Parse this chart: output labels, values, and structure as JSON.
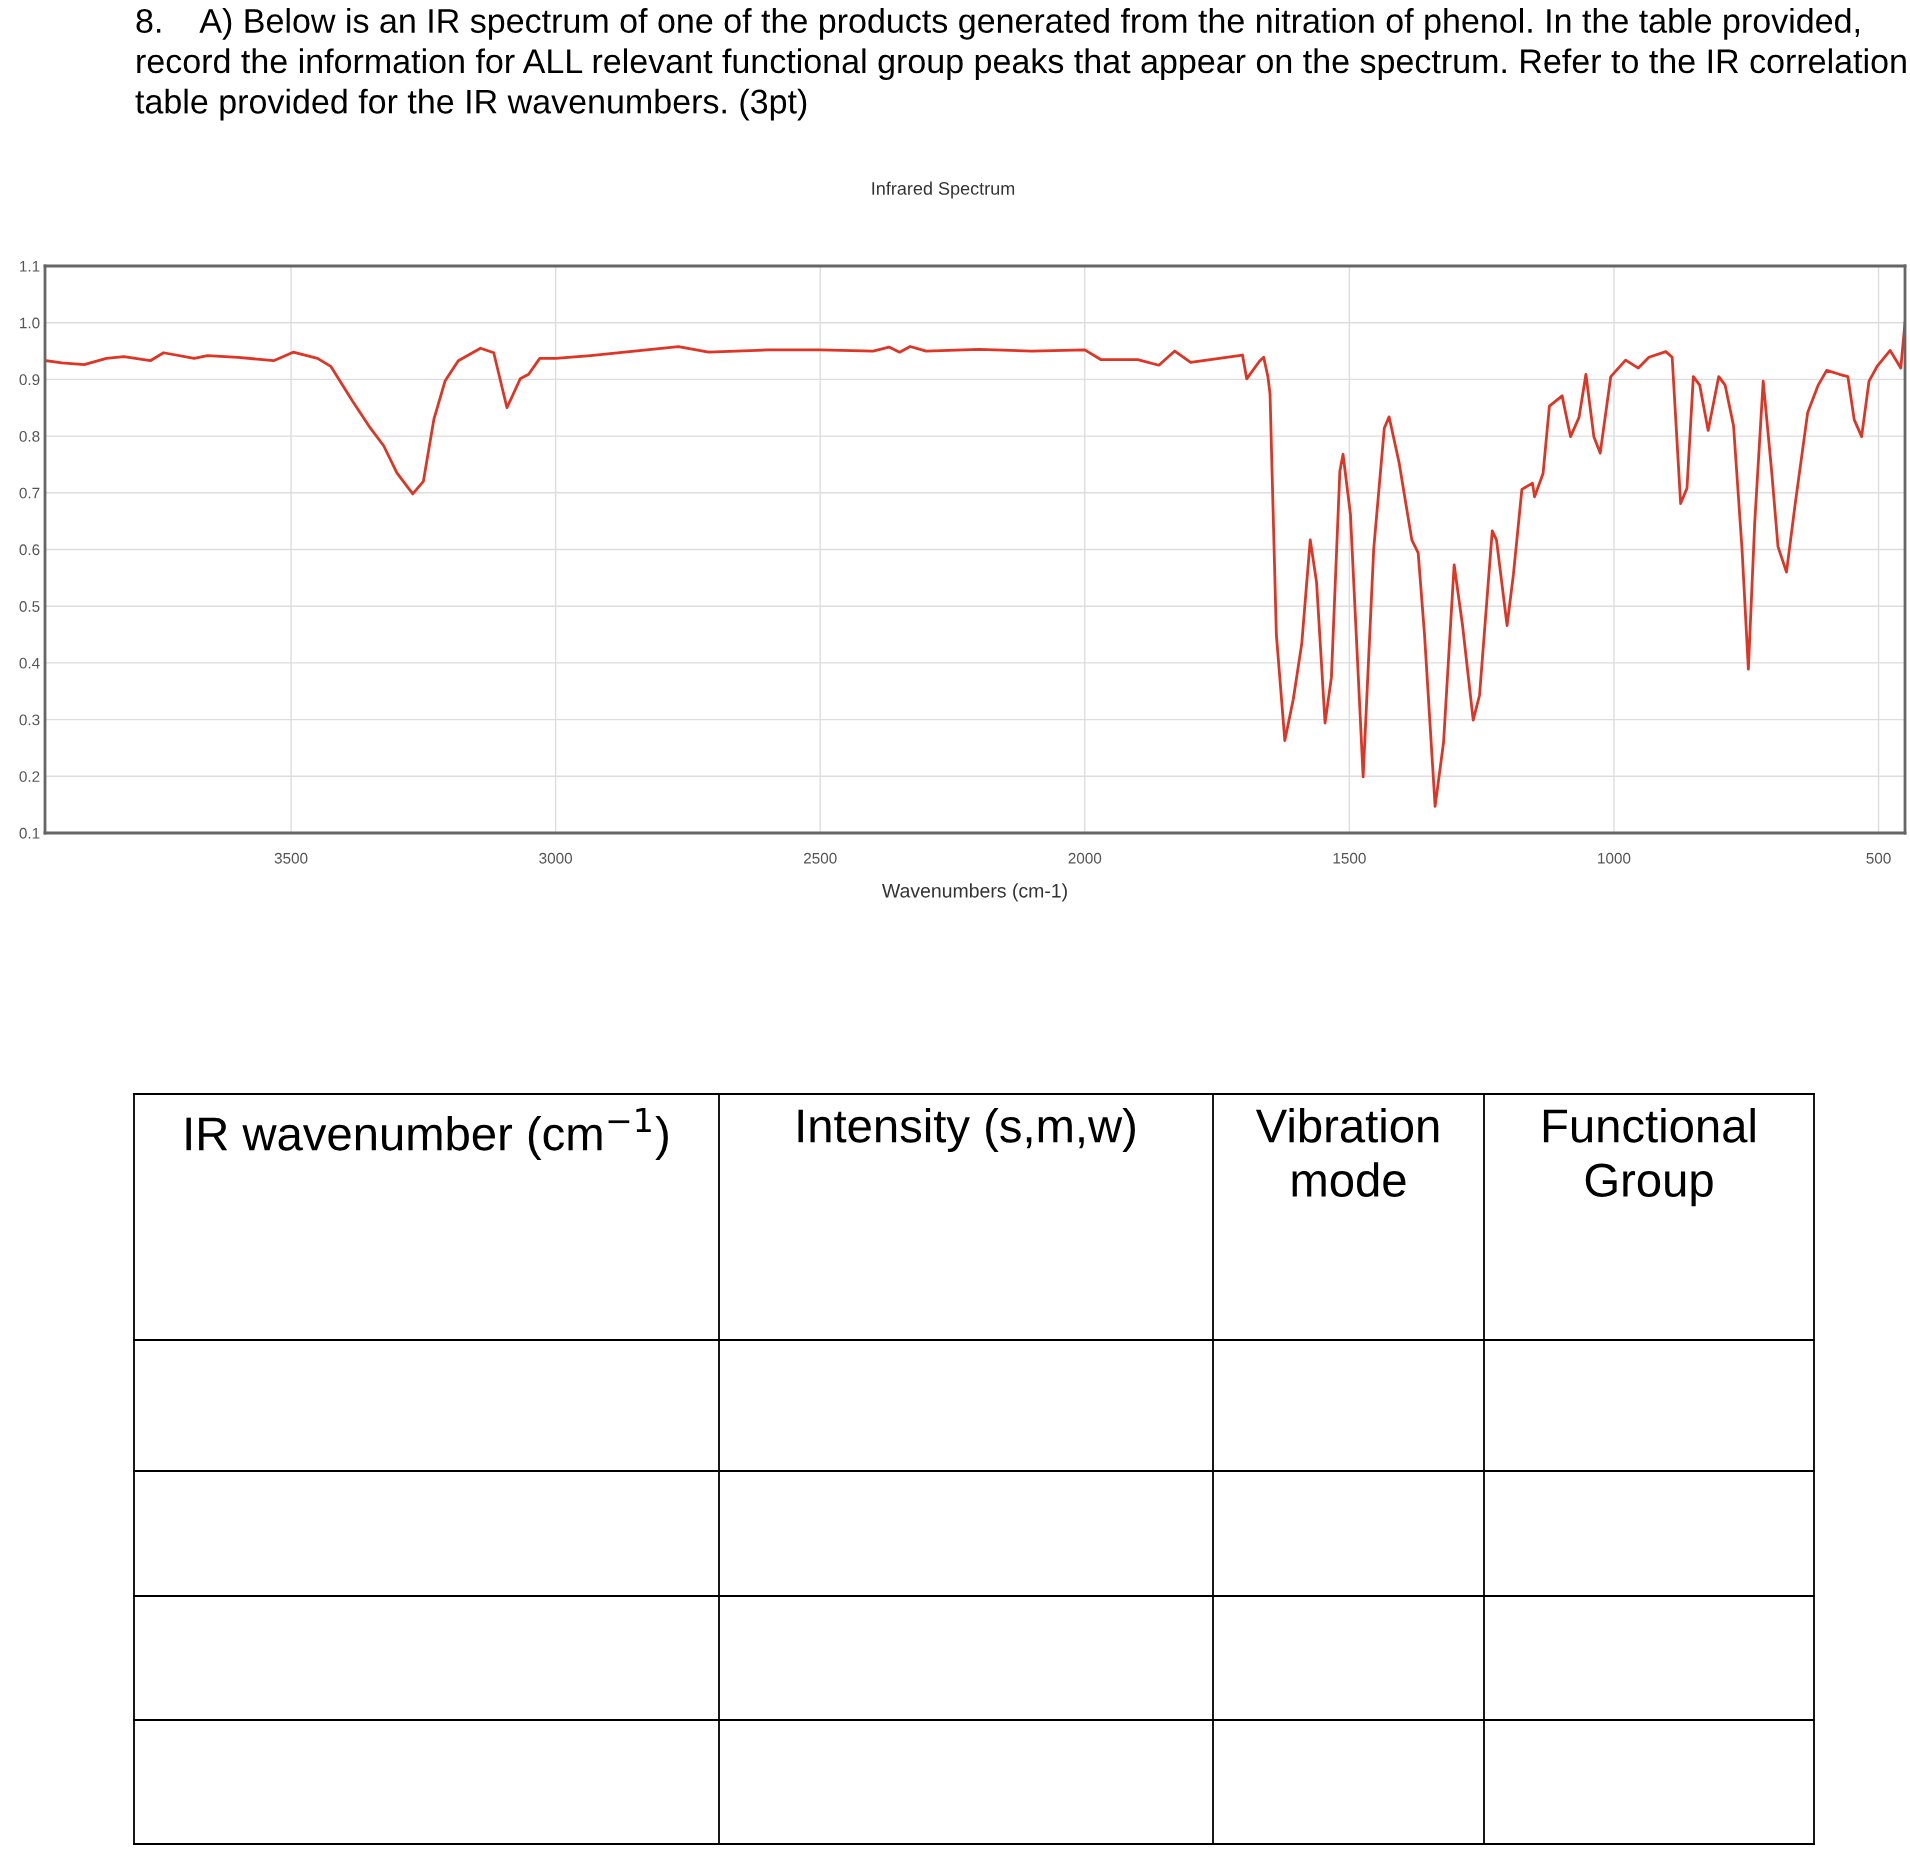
{
  "chart_data": {
    "type": "line",
    "title": "8.    A) Below is an IR spectrum of one of the products generated from the nitration of phenol. In the table provided, record the information for ALL relevant functional group peaks that appear on the spectrum. Refer to the IR correlation table provided for the IR wavenumbers. (3pt)",
    "subtitle": "Infrared Spectrum",
    "xlabel": "Wavenumbers (cm-1)",
    "annotations": [
      "IR wavenumber (cm$^{−1}$)",
      "Intensity (s,m,w)",
      "Vibration\nmode",
      "Functional\nGroup"
    ],
    "series": [
      {
        "color": "#e03424",
        "x": [
          3963,
          3933,
          3891,
          3849,
          3816,
          3766,
          3741,
          3683,
          3658,
          3600,
          3533,
          3496,
          3450,
          3425,
          3384,
          3350,
          3325,
          3300,
          3270,
          3250,
          3230,
          3209,
          3184,
          3142,
          3117,
          3092,
          3067,
          3051,
          3030,
          3000,
          2934,
          2768,
          2711,
          2600,
          2500,
          2400,
          2370,
          2350,
          2330,
          2300,
          2200,
          2100,
          2000,
          1970,
          1900,
          1860,
          1830,
          1800,
          1702,
          1694,
          1670,
          1662,
          1654,
          1650,
          1638,
          1622,
          1606,
          1590,
          1574,
          1562,
          1546,
          1534,
          1518,
          1512,
          1498,
          1474,
          1454,
          1434,
          1425,
          1406,
          1382,
          1370,
          1358,
          1338,
          1322,
          1302,
          1286,
          1266,
          1254,
          1230,
          1222,
          1202,
          1190,
          1174,
          1154,
          1150,
          1134,
          1122,
          1098,
          1082,
          1066,
          1053,
          1038,
          1026,
          1006,
          978,
          954,
          934,
          902,
          890,
          874,
          862,
          850,
          838,
          822,
          802,
          790,
          774,
          758,
          746,
          734,
          718,
          702,
          690,
          674,
          658,
          634,
          614,
          598,
          574,
          558,
          546,
          532,
          518,
          502,
          478,
          458,
          450
        ],
        "values": [
          0.933,
          0.929,
          0.926,
          0.937,
          0.94,
          0.933,
          0.947,
          0.937,
          0.942,
          0.939,
          0.933,
          0.948,
          0.937,
          0.923,
          0.862,
          0.814,
          0.783,
          0.735,
          0.698,
          0.72,
          0.83,
          0.897,
          0.933,
          0.955,
          0.947,
          0.85,
          0.901,
          0.909,
          0.937,
          0.937,
          0.942,
          0.958,
          0.948,
          0.952,
          0.952,
          0.95,
          0.957,
          0.948,
          0.958,
          0.95,
          0.953,
          0.95,
          0.952,
          0.935,
          0.935,
          0.925,
          0.95,
          0.93,
          0.943,
          0.901,
          0.932,
          0.939,
          0.905,
          0.875,
          0.45,
          0.263,
          0.336,
          0.434,
          0.617,
          0.542,
          0.294,
          0.374,
          0.738,
          0.768,
          0.662,
          0.199,
          0.601,
          0.814,
          0.834,
          0.753,
          0.617,
          0.594,
          0.45,
          0.147,
          0.26,
          0.573,
          0.465,
          0.299,
          0.343,
          0.633,
          0.617,
          0.466,
          0.556,
          0.706,
          0.717,
          0.693,
          0.734,
          0.853,
          0.871,
          0.799,
          0.833,
          0.909,
          0.799,
          0.77,
          0.905,
          0.934,
          0.92,
          0.939,
          0.949,
          0.939,
          0.681,
          0.708,
          0.905,
          0.89,
          0.81,
          0.905,
          0.89,
          0.818,
          0.601,
          0.389,
          0.647,
          0.897,
          0.738,
          0.605,
          0.56,
          0.677,
          0.841,
          0.89,
          0.916,
          0.909,
          0.905,
          0.829,
          0.799,
          0.897,
          0.924,
          0.951,
          0.92,
          1.0
        ]
      }
    ],
    "xlim": [
      3965,
      450
    ],
    "xticks": [
      3500,
      3000,
      2500,
      2000,
      1500,
      1000,
      500
    ],
    "ylim": [
      0.1,
      1.1
    ],
    "yticks": [
      0.1,
      0.2,
      0.3,
      0.4,
      0.5,
      0.6,
      0.7,
      0.8,
      0.9,
      {
        "value": 1,
        "label": "1.0"
      },
      1.1
    ],
    "grid": true,
    "marker": "none",
    "line_style": "solid"
  }
}
